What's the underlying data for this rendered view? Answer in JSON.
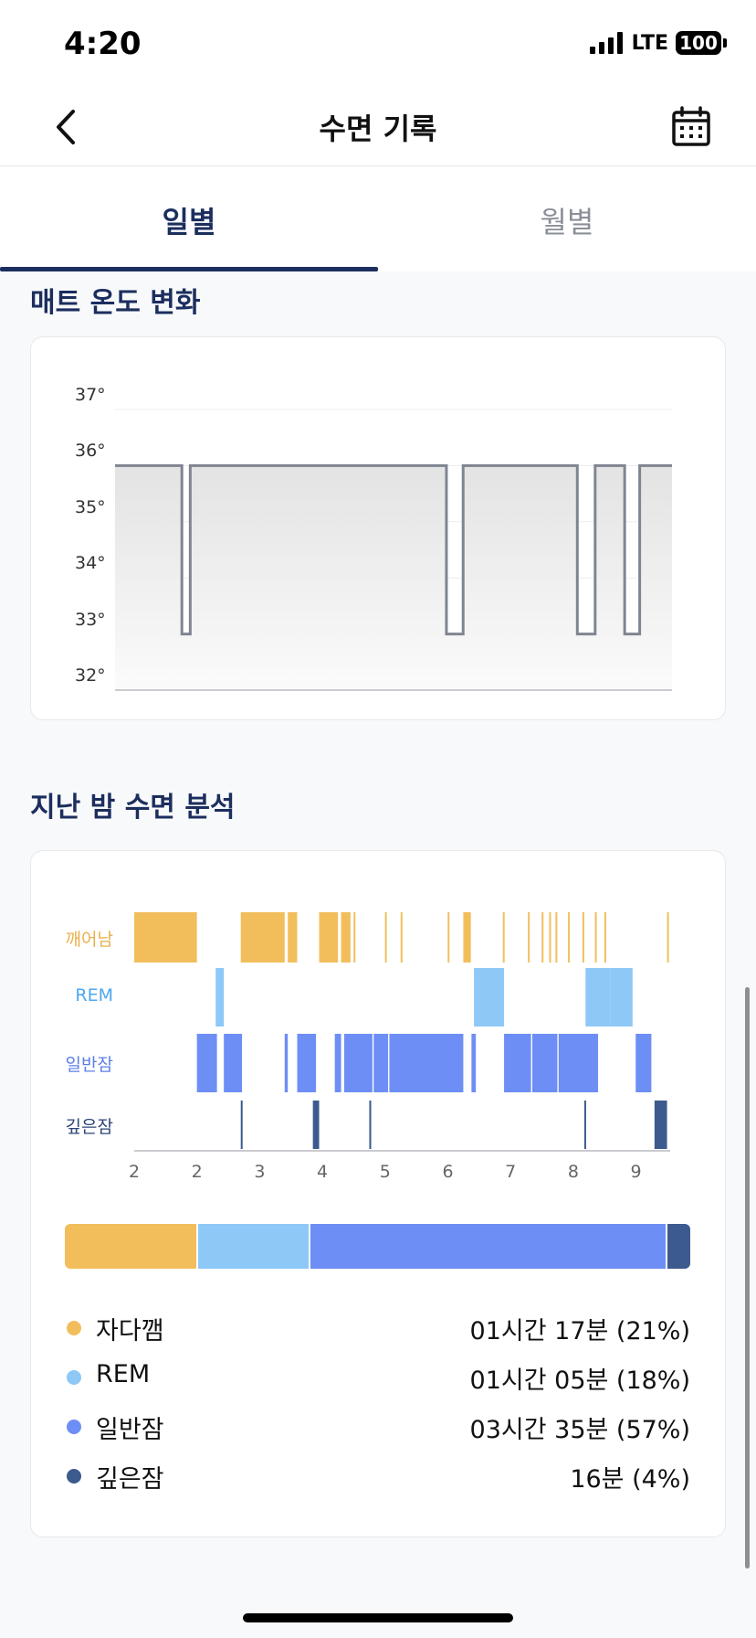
{
  "status": {
    "time": "4:20",
    "network": "LTE",
    "battery": "100"
  },
  "nav": {
    "title": "수면 기록",
    "back_icon": "chevron-left-icon",
    "calendar_icon": "calendar-icon"
  },
  "tabs": [
    {
      "label": "일별",
      "active": true
    },
    {
      "label": "월별",
      "active": false
    }
  ],
  "temperature": {
    "title": "매트 온도 변화",
    "chart_data": {
      "type": "line",
      "y_ticks": [
        "37°",
        "36°",
        "35°",
        "34°",
        "33°",
        "32°"
      ],
      "ylim": [
        32,
        37
      ],
      "line_color": "#7f8591",
      "series": [
        {
          "values": [
            [
              0.0,
              36
            ],
            [
              0.12,
              36
            ],
            [
              0.12,
              33
            ],
            [
              0.135,
              33
            ],
            [
              0.135,
              36
            ],
            [
              0.595,
              36
            ],
            [
              0.595,
              33
            ],
            [
              0.625,
              33
            ],
            [
              0.625,
              36
            ],
            [
              0.83,
              36
            ],
            [
              0.83,
              33
            ],
            [
              0.862,
              33
            ],
            [
              0.862,
              36
            ],
            [
              0.915,
              36
            ],
            [
              0.915,
              33
            ],
            [
              0.942,
              33
            ],
            [
              0.942,
              36
            ],
            [
              1.0,
              36
            ]
          ]
        }
      ]
    }
  },
  "analysis": {
    "title": "지난 밤 수면 분석",
    "chart_data": {
      "type": "bar",
      "stages": [
        {
          "name": "깨어남",
          "color": "#f2be5c"
        },
        {
          "name": "REM",
          "color": "#8ec8f6"
        },
        {
          "name": "일반잠",
          "color": "#6d8ef5"
        },
        {
          "name": "깊은잠",
          "color": "#3d5a8f"
        }
      ],
      "x_ticks": [
        "2",
        "2",
        "3",
        "4",
        "5",
        "6",
        "7",
        "8",
        "9"
      ],
      "segments": {
        "awake": [
          [
            2.0,
            3.0
          ],
          [
            3.7,
            4.4
          ],
          [
            4.45,
            4.6
          ],
          [
            4.95,
            5.25
          ],
          [
            5.3,
            5.45
          ],
          [
            5.5,
            5.52
          ],
          [
            6.0,
            6.02
          ],
          [
            6.25,
            6.27
          ],
          [
            7.0,
            7.02
          ],
          [
            7.25,
            7.37
          ],
          [
            7.88,
            7.9
          ],
          [
            8.28,
            8.3
          ],
          [
            8.5,
            8.52
          ],
          [
            8.62,
            8.64
          ],
          [
            8.72,
            8.74
          ],
          [
            8.92,
            8.94
          ],
          [
            9.15,
            9.17
          ],
          [
            9.35,
            9.37
          ],
          [
            9.5,
            9.52
          ],
          [
            10.5,
            10.52
          ]
        ],
        "rem": [
          [
            3.3,
            3.43
          ],
          [
            7.42,
            7.9
          ],
          [
            9.2,
            9.6
          ],
          [
            9.6,
            9.95
          ]
        ],
        "light": [
          [
            3.0,
            3.32
          ],
          [
            3.43,
            3.72
          ],
          [
            4.4,
            4.45
          ],
          [
            4.6,
            4.9
          ],
          [
            5.2,
            5.3
          ],
          [
            5.35,
            5.8
          ],
          [
            5.82,
            6.05
          ],
          [
            6.07,
            7.25
          ],
          [
            7.38,
            7.45
          ],
          [
            7.9,
            8.33
          ],
          [
            8.35,
            8.75
          ],
          [
            8.77,
            9.4
          ],
          [
            10.0,
            10.25
          ]
        ],
        "deep": [
          [
            3.7,
            3.72
          ],
          [
            4.85,
            4.95
          ],
          [
            5.75,
            5.78
          ],
          [
            9.18,
            9.2
          ],
          [
            10.3,
            10.5
          ]
        ]
      },
      "totals": [
        {
          "name": "자다깸",
          "value": "01시간 17분 (21%)",
          "percent": 21,
          "color": "#f2be5c"
        },
        {
          "name": "REM",
          "value": "01시간 05분 (18%)",
          "percent": 18,
          "color": "#8ec8f6"
        },
        {
          "name": "일반잠",
          "value": "03시간 35분 (57%)",
          "percent": 57,
          "color": "#6d8ef5"
        },
        {
          "name": "깊은잠",
          "value": "16분 (4%)",
          "percent": 4,
          "color": "#3d5a8f"
        }
      ]
    }
  }
}
